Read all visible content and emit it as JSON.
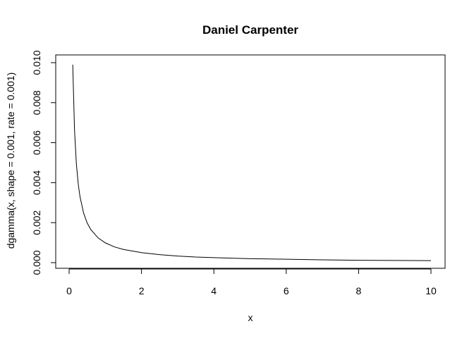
{
  "chart_data": {
    "type": "line",
    "title": "Daniel Carpenter",
    "xlabel": "x",
    "ylabel": "dgamma(x, shape = 0.001, rate = 0.001)",
    "xlim": [
      0,
      10
    ],
    "ylim": [
      0,
      0.01
    ],
    "x_ticks": [
      "0",
      "2",
      "4",
      "6",
      "8",
      "10"
    ],
    "y_ticks": [
      "0.000",
      "0.002",
      "0.004",
      "0.006",
      "0.008",
      "0.010"
    ],
    "grid": false,
    "legend": "none",
    "series": [
      {
        "color": "#000000",
        "x": [
          0.1,
          0.15,
          0.2,
          0.25,
          0.3,
          0.4,
          0.5,
          0.6,
          0.8,
          1.0,
          1.25,
          1.5,
          2.0,
          2.5,
          3.0,
          3.5,
          4.0,
          5.0,
          6.0,
          7.0,
          8.0,
          9.0,
          10.0
        ],
        "y": [
          0.0099,
          0.0066,
          0.00495,
          0.00396,
          0.0033,
          0.00248,
          0.00198,
          0.00165,
          0.00124,
          0.00099,
          0.00079,
          0.00066,
          0.0005,
          0.0004,
          0.00033,
          0.00028,
          0.00025,
          0.0002,
          0.00017,
          0.00014,
          0.00012,
          0.00011,
          0.0001
        ]
      }
    ]
  }
}
